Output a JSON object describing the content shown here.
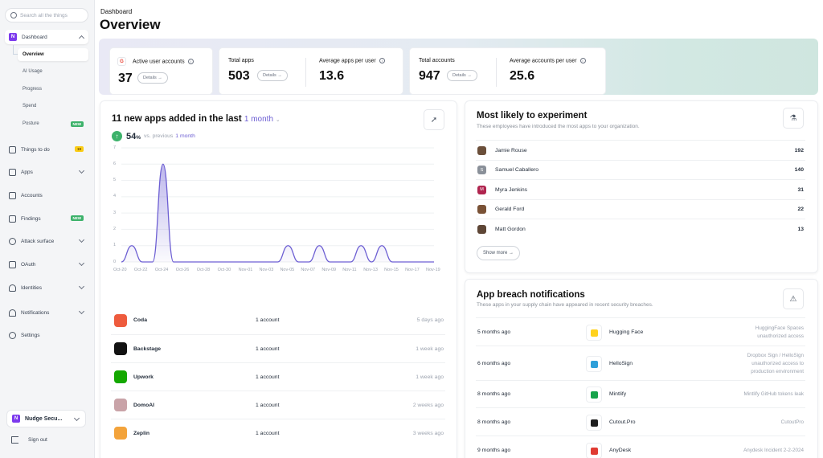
{
  "sidebar": {
    "search_placeholder": "Search all the things",
    "dashboard": "Dashboard",
    "subitems": [
      "Overview",
      "AI Usage",
      "Progress",
      "Spend",
      "Posture"
    ],
    "posture_badge": "NEW",
    "items": [
      {
        "label": "Things to do",
        "badge": "19"
      },
      {
        "label": "Apps"
      },
      {
        "label": "Accounts"
      },
      {
        "label": "Findings",
        "badge": "NEW"
      },
      {
        "label": "Attack surface"
      },
      {
        "label": "OAuth"
      },
      {
        "label": "Identities"
      },
      {
        "label": "Notifications"
      },
      {
        "label": "Settings"
      }
    ],
    "org": "Nudge Secu...",
    "signout": "Sign out"
  },
  "header": {
    "breadcrumb": "Dashboard",
    "title": "Overview"
  },
  "stats": {
    "active_users_label": "Active user accounts",
    "active_users_value": "37",
    "total_apps_label": "Total apps",
    "total_apps_value": "503",
    "avg_apps_label": "Average apps per user",
    "avg_apps_value": "13.6",
    "total_accounts_label": "Total accounts",
    "total_accounts_value": "947",
    "avg_accounts_label": "Average accounts per user",
    "avg_accounts_value": "25.6",
    "details": "Details →"
  },
  "apps_panel": {
    "title": "11 new apps added in the last",
    "period": "1 month",
    "pct": "54",
    "pct_unit": "%",
    "vs": "vs. previous",
    "vs_period": "1 month"
  },
  "chart_data": {
    "type": "area",
    "x": [
      "Oct-20",
      "Oct-21",
      "Oct-22",
      "Oct-23",
      "Oct-24",
      "Oct-25",
      "Oct-26",
      "Oct-27",
      "Oct-28",
      "Oct-29",
      "Oct-30",
      "Oct-31",
      "Nov-01",
      "Nov-02",
      "Nov-03",
      "Nov-04",
      "Nov-05",
      "Nov-06",
      "Nov-07",
      "Nov-08",
      "Nov-09",
      "Nov-10",
      "Nov-11",
      "Nov-12",
      "Nov-13",
      "Nov-14",
      "Nov-15",
      "Nov-16",
      "Nov-17",
      "Nov-18",
      "Nov-19"
    ],
    "xticks": [
      "Oct-20",
      "Oct-22",
      "Oct-24",
      "Oct-26",
      "Oct-28",
      "Oct-30",
      "Nov-01",
      "Nov-03",
      "Nov-05",
      "Nov-07",
      "Nov-09",
      "Nov-11",
      "Nov-13",
      "Nov-15",
      "Nov-17",
      "Nov-19"
    ],
    "y": [
      0,
      1,
      0,
      0,
      6,
      0,
      0,
      0,
      0,
      0,
      0,
      0,
      0,
      0,
      0,
      0,
      1,
      0,
      0,
      1,
      0,
      0,
      0,
      1,
      0,
      1,
      0,
      0,
      0,
      0,
      0
    ],
    "yticks": [
      "0",
      "1",
      "2",
      "3",
      "4",
      "5",
      "6",
      "7"
    ],
    "ylim": [
      0,
      7
    ],
    "grid": true,
    "color": "#6d5fd3"
  },
  "new_apps": [
    {
      "name": "Coda",
      "accounts": "1 account",
      "when": "5 days ago",
      "color": "#ee5b3d"
    },
    {
      "name": "Backstage",
      "accounts": "1 account",
      "when": "1 week ago",
      "color": "#121212"
    },
    {
      "name": "Upwork",
      "accounts": "1 account",
      "when": "1 week ago",
      "color": "#14a800"
    },
    {
      "name": "DomoAI",
      "accounts": "1 account",
      "when": "2 weeks ago",
      "color": "#c9a3a8"
    },
    {
      "name": "Zeplin",
      "accounts": "1 account",
      "when": "3 weeks ago",
      "color": "#f3a33b"
    }
  ],
  "experiment": {
    "title": "Most likely to experiment",
    "subtitle": "These employees have introduced the most apps to your organization.",
    "people": [
      {
        "name": "Jamie Rouse",
        "count": "192",
        "initial": "",
        "color": "#6b4f3a"
      },
      {
        "name": "Samuel Caballero",
        "count": "140",
        "initial": "S",
        "color": "#8a9099"
      },
      {
        "name": "Myra Jenkins",
        "count": "31",
        "initial": "M",
        "color": "#b0254f"
      },
      {
        "name": "Gerald Ford",
        "count": "22",
        "initial": "",
        "color": "#7a5236"
      },
      {
        "name": "Matt Gordon",
        "count": "13",
        "initial": "",
        "color": "#5e4636"
      }
    ],
    "show_more": "Show more →"
  },
  "breach": {
    "title": "App breach notifications",
    "subtitle": "These apps in your supply chain have appeared in recent security breaches.",
    "rows": [
      {
        "when": "5 months ago",
        "app": "Hugging Face",
        "desc": [
          "HuggingFace Spaces",
          "unauthorized access"
        ],
        "color": "#ffd21e"
      },
      {
        "when": "6 months ago",
        "app": "HelloSign",
        "desc": [
          "Dropbox Sign / HelloSign",
          "unauthorized access to",
          "production environment"
        ],
        "color": "#2e9fd9"
      },
      {
        "when": "8 months ago",
        "app": "Mintlify",
        "desc": [
          "Mintlify GitHub tokens leak"
        ],
        "color": "#16a34a"
      },
      {
        "when": "8 months ago",
        "app": "Cutout.Pro",
        "desc": [
          "CutoutPro"
        ],
        "color": "#1f1f1f"
      },
      {
        "when": "9 months ago",
        "app": "AnyDesk",
        "desc": [
          "Anydesk Incident 2-2-2024"
        ],
        "color": "#e03b32"
      }
    ]
  }
}
